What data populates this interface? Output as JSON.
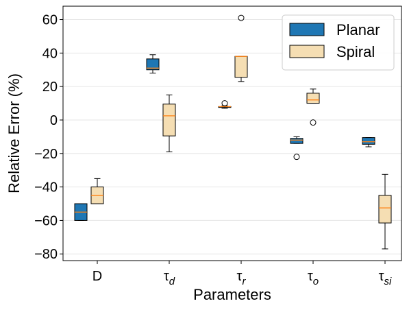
{
  "chart_data": {
    "type": "box",
    "xlabel": "Parameters",
    "ylabel": "Relative Error (%)",
    "ylim": [
      -84,
      68
    ],
    "yticks": [
      -80,
      -60,
      -40,
      -20,
      0,
      20,
      40,
      60
    ],
    "ytick_labels": [
      "−80",
      "−60",
      "−40",
      "−20",
      "0",
      "20",
      "40",
      "60"
    ],
    "grid": "horizontal",
    "legend_position": "top-right",
    "categories": [
      {
        "base": "D",
        "sub": ""
      },
      {
        "base": "τ",
        "sub": "d"
      },
      {
        "base": "τ",
        "sub": "r"
      },
      {
        "base": "τ",
        "sub": "o"
      },
      {
        "base": "τ",
        "sub": "si"
      }
    ],
    "median_color": "#ff7f0e",
    "series": [
      {
        "name": "Planar",
        "color": "#1f77b4",
        "boxes": [
          {
            "whisker_low": -60,
            "q1": -60,
            "median": -55,
            "q3": -50,
            "whisker_high": -50,
            "outliers": []
          },
          {
            "whisker_low": 28,
            "q1": 30,
            "median": 31,
            "q3": 36.5,
            "whisker_high": 39,
            "outliers": []
          },
          {
            "whisker_low": 7,
            "q1": 7.5,
            "median": 8,
            "q3": 8,
            "whisker_high": 8.5,
            "outliers": [
              10
            ]
          },
          {
            "whisker_low": -14,
            "q1": -14,
            "median": -12,
            "q3": -11,
            "whisker_high": -10,
            "outliers": [
              -22
            ]
          },
          {
            "whisker_low": -16,
            "q1": -14.5,
            "median": -13,
            "q3": -10.5,
            "whisker_high": -10.5,
            "outliers": []
          }
        ]
      },
      {
        "name": "Spiral",
        "color": "#f5deb3",
        "boxes": [
          {
            "whisker_low": -50,
            "q1": -50,
            "median": -45,
            "q3": -40,
            "whisker_high": -35,
            "outliers": []
          },
          {
            "whisker_low": -19,
            "q1": -9.5,
            "median": 2.5,
            "q3": 9.5,
            "whisker_high": 15,
            "outliers": []
          },
          {
            "whisker_low": 23,
            "q1": 25.5,
            "median": 38,
            "q3": 38,
            "whisker_high": 38,
            "outliers": [
              61
            ]
          },
          {
            "whisker_low": 10,
            "q1": 10,
            "median": 12,
            "q3": 16,
            "whisker_high": 18.5,
            "outliers": [
              -1.5
            ]
          },
          {
            "whisker_low": -77,
            "q1": -61.5,
            "median": -52.5,
            "q3": -45,
            "whisker_high": -32.5,
            "outliers": []
          }
        ]
      }
    ]
  }
}
